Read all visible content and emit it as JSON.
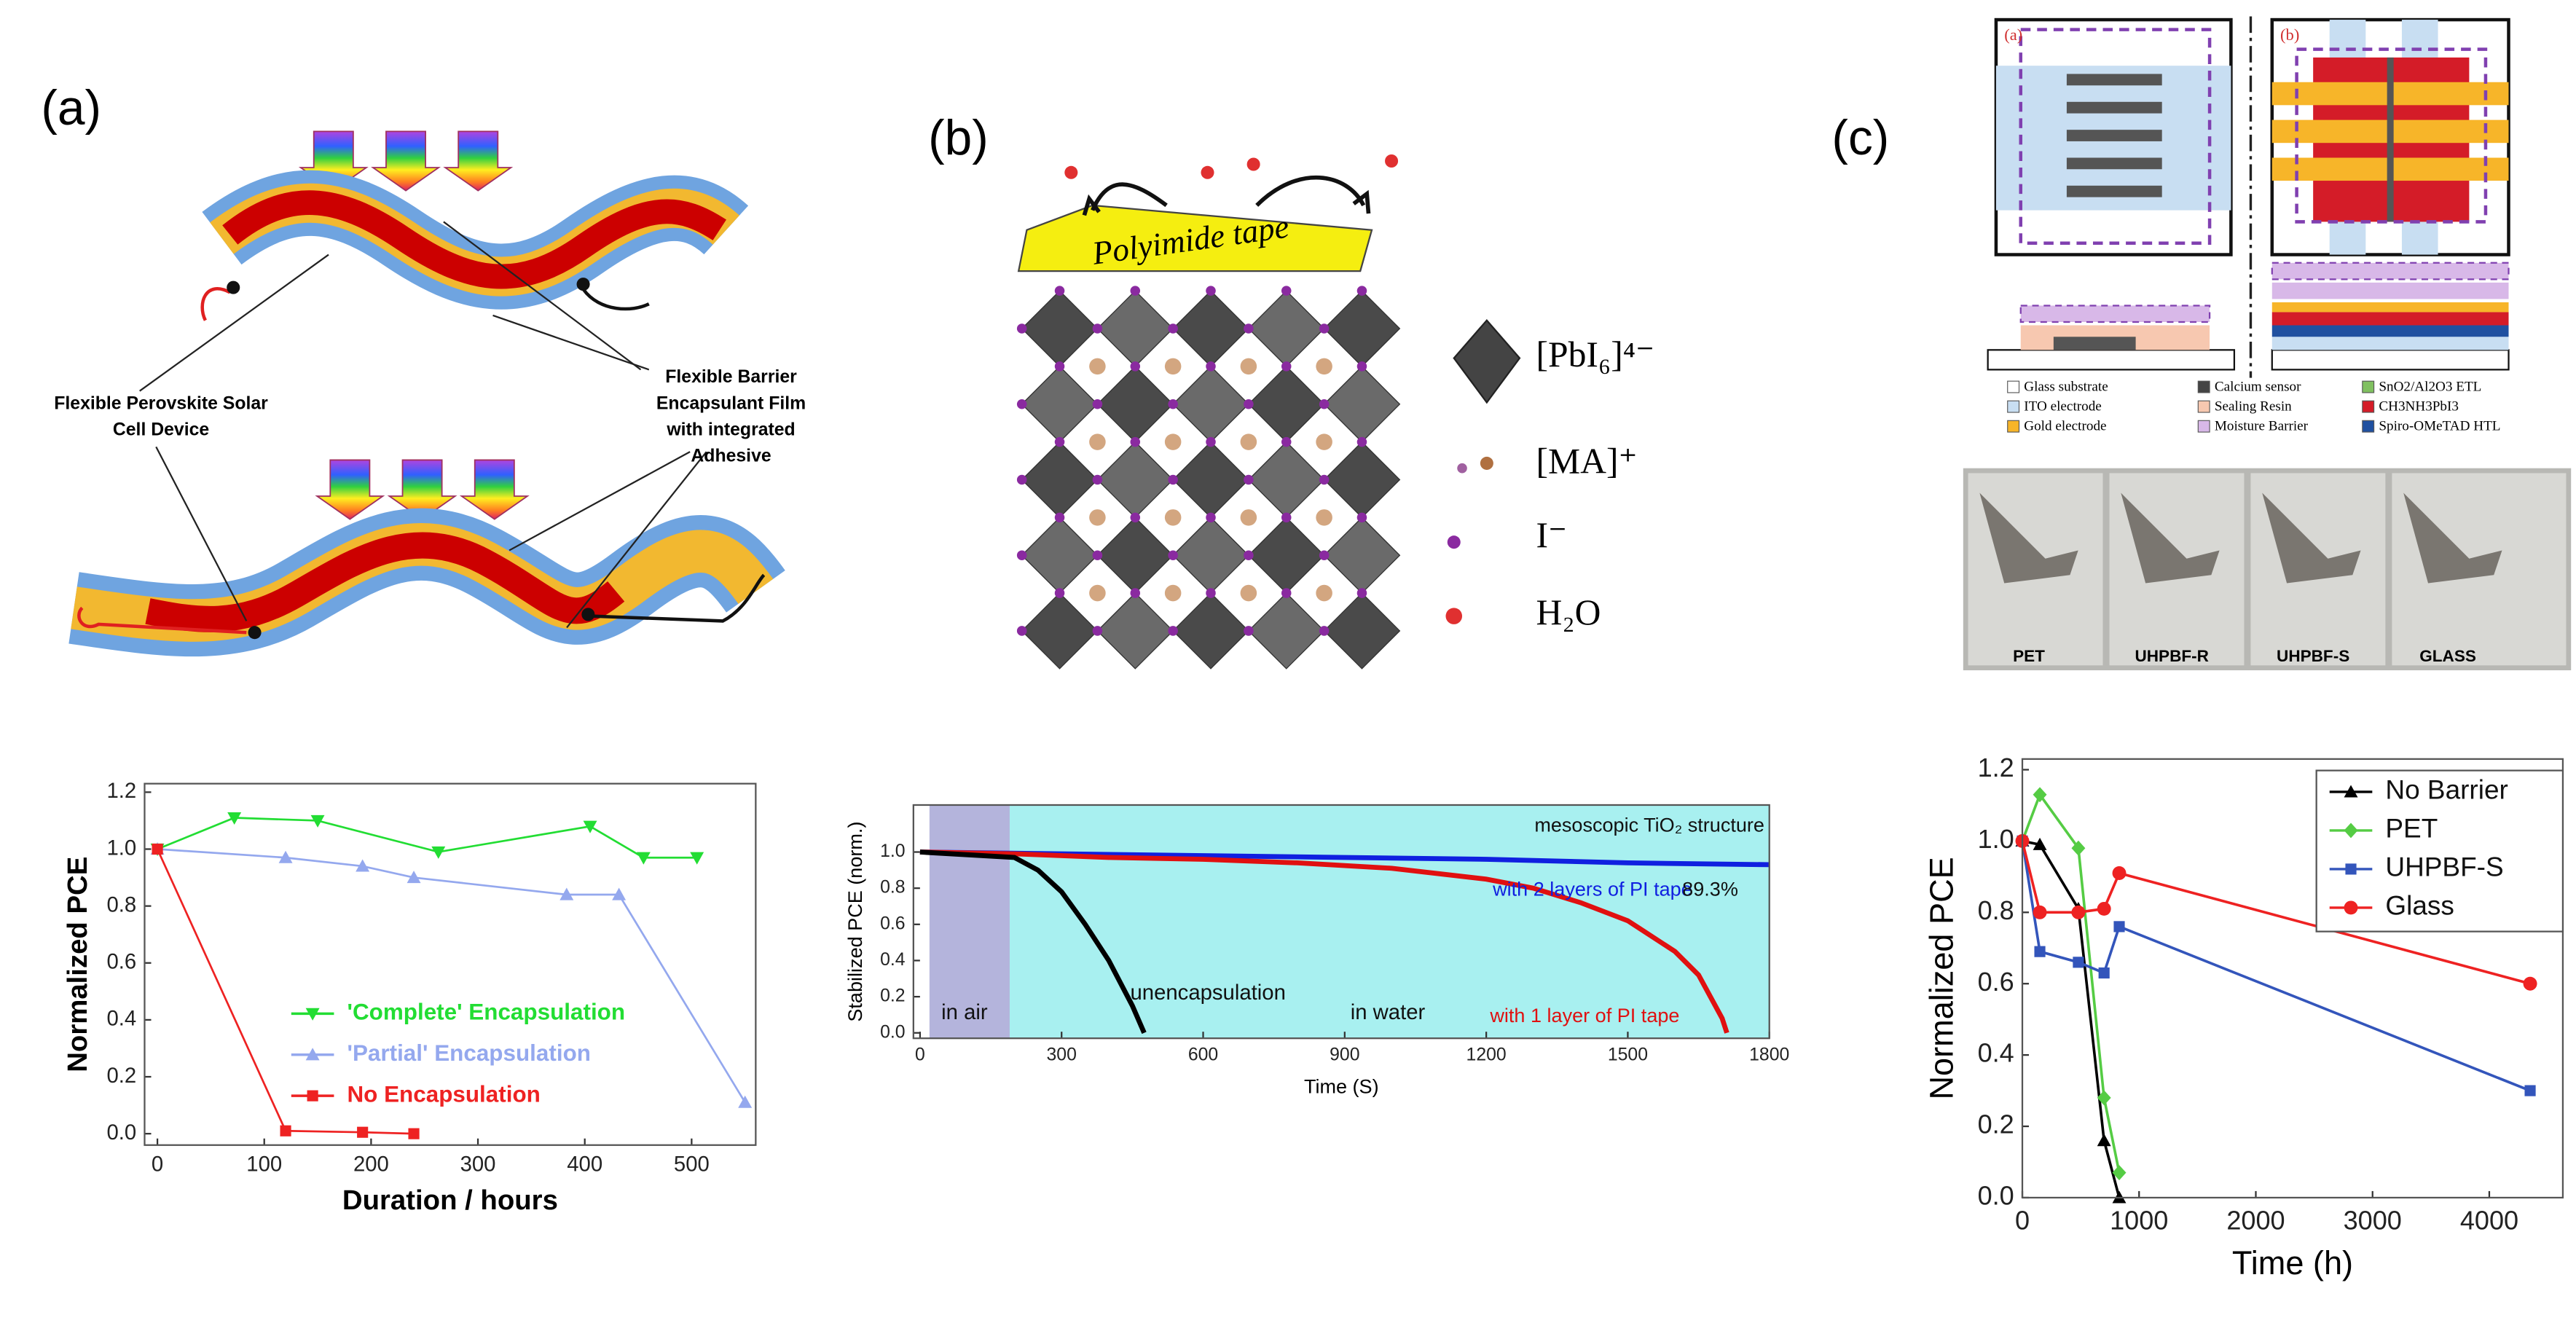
{
  "panels": [
    "(a)",
    "(b)",
    "(c)"
  ],
  "diagram_a": {
    "device_label": [
      "Flexible Perovskite Solar",
      "Cell Device"
    ],
    "film_label": [
      "Flexible Barrier",
      "Encapsulant Film",
      "with integrated",
      "Adhesive"
    ]
  },
  "diagram_b": {
    "tape": "Polyimide tape",
    "legend": [
      "[PbI₆]⁴⁻",
      "[MA]⁺",
      "I⁻",
      "H₂O"
    ]
  },
  "diagram_c": {
    "inset_labels": [
      "(a)",
      "(b)"
    ],
    "legend": [
      "Glass substrate",
      "Calcium sensor",
      "SnO2/Al2O3 ETL",
      "ITO electrode",
      "Sealing Resin",
      "CH3NH3PbI3",
      "Gold electrode",
      "Moisture Barrier",
      "Spiro-OMeTAD HTL"
    ],
    "photo_labels": [
      "PET",
      "UHPBF-R",
      "UHPBF-S",
      "GLASS"
    ]
  },
  "chart_data": [
    {
      "type": "line",
      "xlabel": "Duration / hours",
      "ylabel": "Normalized PCE",
      "xlim": [
        -12,
        560
      ],
      "ylim": [
        -0.04,
        1.23
      ],
      "xticks": [
        0,
        100,
        200,
        300,
        400,
        500
      ],
      "yticks": [
        {
          "value": 0,
          "label": "0.0"
        },
        {
          "value": 0.2,
          "label": "0.2"
        },
        {
          "value": 0.4,
          "label": "0.4"
        },
        {
          "value": 0.6,
          "label": "0.6"
        },
        {
          "value": 0.8,
          "label": "0.8"
        },
        {
          "value": 1,
          "label": "1.0"
        },
        {
          "value": 1.2,
          "label": "1.2"
        }
      ],
      "legend_loc": "lower center",
      "legend_text_colored": true,
      "line_width": 1.2,
      "series": [
        {
          "name": "'Complete' Encapsulation",
          "color": "#22dd33",
          "marker": "triangle-down",
          "x": [
            0,
            72,
            150,
            263,
            405,
            455,
            505
          ],
          "values": [
            1.0,
            1.11,
            1.1,
            0.99,
            1.08,
            0.97,
            0.97
          ]
        },
        {
          "name": "'Partial' Encapsulation",
          "color": "#94a8ee",
          "marker": "triangle",
          "x": [
            0,
            120,
            192,
            240,
            383,
            432,
            550
          ],
          "values": [
            1.0,
            0.97,
            0.94,
            0.9,
            0.84,
            0.84,
            0.11
          ]
        },
        {
          "name": "No Encapsulation",
          "color": "#ee2222",
          "marker": "square",
          "x": [
            0,
            120,
            192,
            240
          ],
          "values": [
            1.0,
            0.01,
            0.005,
            0.0
          ]
        }
      ]
    },
    {
      "type": "line",
      "xlabel": "Time (S)",
      "ylabel": "Stabilized PCE (norm.)",
      "xlim": [
        -14,
        1800
      ],
      "ylim": [
        -0.03,
        1.26
      ],
      "xticks": [
        0,
        300,
        600,
        900,
        1200,
        1500,
        1800
      ],
      "yticks": [
        {
          "value": 0,
          "label": "0.0"
        },
        {
          "value": 0.2,
          "label": "0.2"
        },
        {
          "value": 0.4,
          "label": "0.4"
        },
        {
          "value": 0.6,
          "label": "0.6"
        },
        {
          "value": 0.8,
          "label": "0.8"
        },
        {
          "value": 1,
          "label": "1.0"
        }
      ],
      "line_width": 3,
      "regions": [
        {
          "xlim": [
            20,
            190
          ],
          "color": "#b4b4dc"
        },
        {
          "xlim": [
            190,
            1800
          ],
          "color": "#a8f0f0"
        }
      ],
      "annotations": [
        "mesoscopic TiO₂ structure",
        "with 2 layers of PI tape",
        "89.3%",
        "in air",
        "unencapsulation",
        "in water",
        "with 1 layer of PI tape"
      ],
      "series": [
        {
          "color": "#1020e0",
          "marker": null,
          "x": [
            0,
            300,
            600,
            900,
            1200,
            1500,
            1800
          ],
          "values": [
            1.0,
            0.99,
            0.98,
            0.97,
            0.96,
            0.94,
            0.93
          ]
        },
        {
          "color": "#e01010",
          "marker": null,
          "x": [
            0,
            200,
            400,
            600,
            800,
            1000,
            1200,
            1300,
            1400,
            1500,
            1600,
            1650,
            1700,
            1710
          ],
          "values": [
            1.0,
            0.99,
            0.97,
            0.96,
            0.94,
            0.91,
            0.85,
            0.8,
            0.72,
            0.62,
            0.45,
            0.32,
            0.08,
            0
          ]
        },
        {
          "color": "#000000",
          "marker": null,
          "x": [
            0,
            200,
            250,
            300,
            350,
            400,
            450,
            475
          ],
          "values": [
            1.0,
            0.97,
            0.9,
            0.78,
            0.6,
            0.4,
            0.15,
            0
          ]
        }
      ]
    },
    {
      "type": "line",
      "xlabel": "Time (h)",
      "ylabel": "Normalized PCE",
      "xlim": [
        0,
        4630
      ],
      "ylim": [
        0,
        1.23
      ],
      "xticks": [
        0,
        1000,
        2000,
        3000,
        4000
      ],
      "yticks": [
        {
          "value": 0,
          "label": "0.0"
        },
        {
          "value": 0.2,
          "label": "0.2"
        },
        {
          "value": 0.4,
          "label": "0.4"
        },
        {
          "value": 0.6,
          "label": "0.6"
        },
        {
          "value": 0.8,
          "label": "0.8"
        },
        {
          "value": 1,
          "label": "1.0"
        },
        {
          "value": 1.2,
          "label": "1.2"
        }
      ],
      "legend_loc": "upper right",
      "legend_text_colored": false,
      "line_width": 1.6,
      "series": [
        {
          "name": "No Barrier",
          "color": "#000000",
          "marker": "triangle",
          "x": [
            0,
            150,
            480,
            700,
            830
          ],
          "values": [
            1.0,
            0.99,
            0.81,
            0.16,
            0.0
          ]
        },
        {
          "name": "PET",
          "color": "#55cc44",
          "marker": "diamond",
          "x": [
            0,
            150,
            480,
            700,
            830
          ],
          "values": [
            1.0,
            1.13,
            0.98,
            0.28,
            0.07
          ]
        },
        {
          "name": "UHPBF-S",
          "color": "#3355bb",
          "marker": "square",
          "x": [
            0,
            150,
            480,
            700,
            830,
            4350
          ],
          "values": [
            1.0,
            0.69,
            0.66,
            0.63,
            0.76,
            0.3
          ]
        },
        {
          "name": "Glass",
          "color": "#ee2222",
          "marker": "circle",
          "x": [
            0,
            150,
            480,
            700,
            830,
            4350
          ],
          "values": [
            1.0,
            0.8,
            0.8,
            0.81,
            0.91,
            0.6
          ]
        }
      ]
    }
  ]
}
